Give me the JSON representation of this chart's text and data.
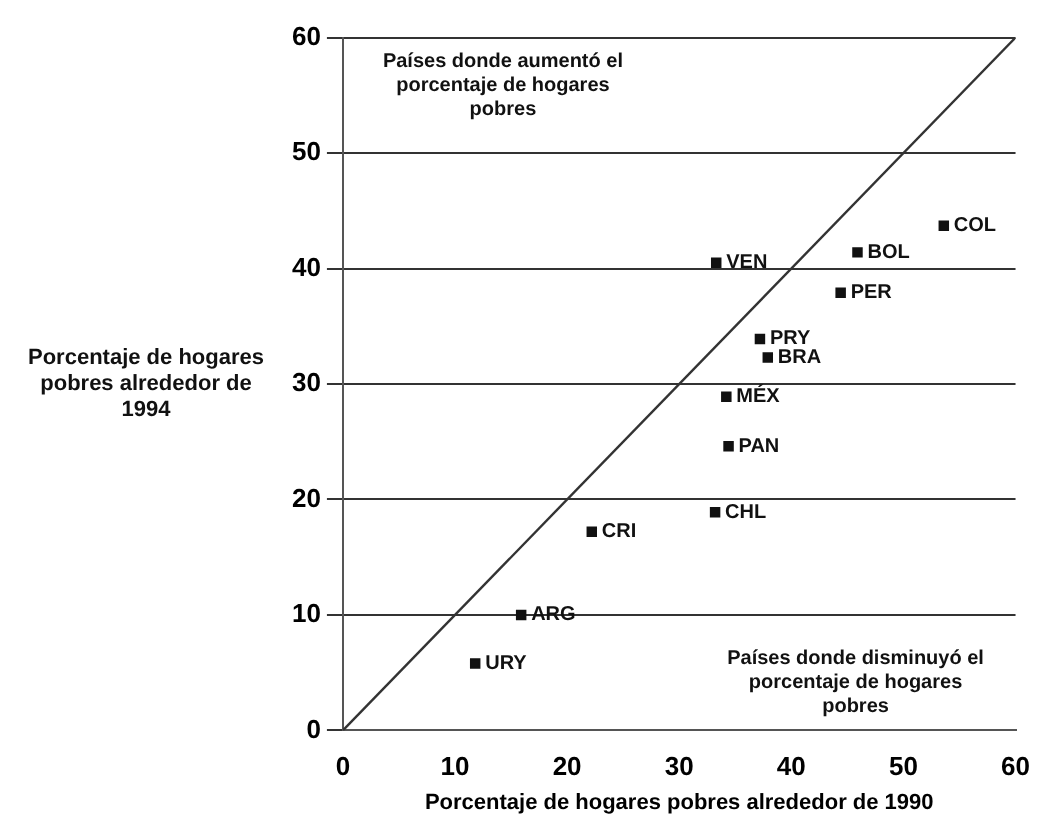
{
  "chart_data": {
    "type": "scatter",
    "xlabel": "Porcentaje de hogares pobres alrededor de 1990",
    "ylabel": "Porcentaje de hogares pobres alrededor de 1994",
    "xlim": [
      0,
      60
    ],
    "ylim": [
      0,
      60
    ],
    "xticks": [
      0,
      10,
      20,
      30,
      40,
      50,
      60
    ],
    "yticks": [
      0,
      10,
      20,
      30,
      40,
      50,
      60
    ],
    "grid": "y",
    "legend": false,
    "marker": "square",
    "annotations": [
      "Países donde aumentó el porcentaje de hogares pobres",
      "Países donde disminuyó el porcentaje de hogares pobres"
    ],
    "series": [
      {
        "type": "line",
        "color": "#333333",
        "x": [
          0,
          60
        ],
        "values": [
          0,
          60
        ],
        "marker": "none"
      },
      {
        "name": "COL",
        "color": "#111111",
        "x": [
          53.6
        ],
        "values": [
          43.7
        ]
      },
      {
        "name": "BOL",
        "color": "#111111",
        "x": [
          45.9
        ],
        "values": [
          41.4
        ]
      },
      {
        "name": "VEN",
        "color": "#111111",
        "x": [
          33.3
        ],
        "values": [
          40.5
        ]
      },
      {
        "name": "PER",
        "color": "#111111",
        "x": [
          44.4
        ],
        "values": [
          37.9
        ]
      },
      {
        "name": "PRY",
        "color": "#111111",
        "x": [
          37.2
        ],
        "values": [
          33.9
        ]
      },
      {
        "name": "BRA",
        "color": "#111111",
        "x": [
          37.9
        ],
        "values": [
          32.3
        ]
      },
      {
        "name": "MÉX",
        "color": "#111111",
        "x": [
          34.2
        ],
        "values": [
          28.9
        ]
      },
      {
        "name": "PAN",
        "color": "#111111",
        "x": [
          34.4
        ],
        "values": [
          24.6
        ]
      },
      {
        "name": "CHL",
        "color": "#111111",
        "x": [
          33.2
        ],
        "values": [
          18.9
        ]
      },
      {
        "name": "CRI",
        "color": "#111111",
        "x": [
          22.2
        ],
        "values": [
          17.2
        ]
      },
      {
        "name": "ARG",
        "color": "#111111",
        "x": [
          15.9
        ],
        "values": [
          10
        ]
      },
      {
        "name": "URY",
        "color": "#111111",
        "x": [
          11.8
        ],
        "values": [
          5.8
        ]
      }
    ]
  }
}
